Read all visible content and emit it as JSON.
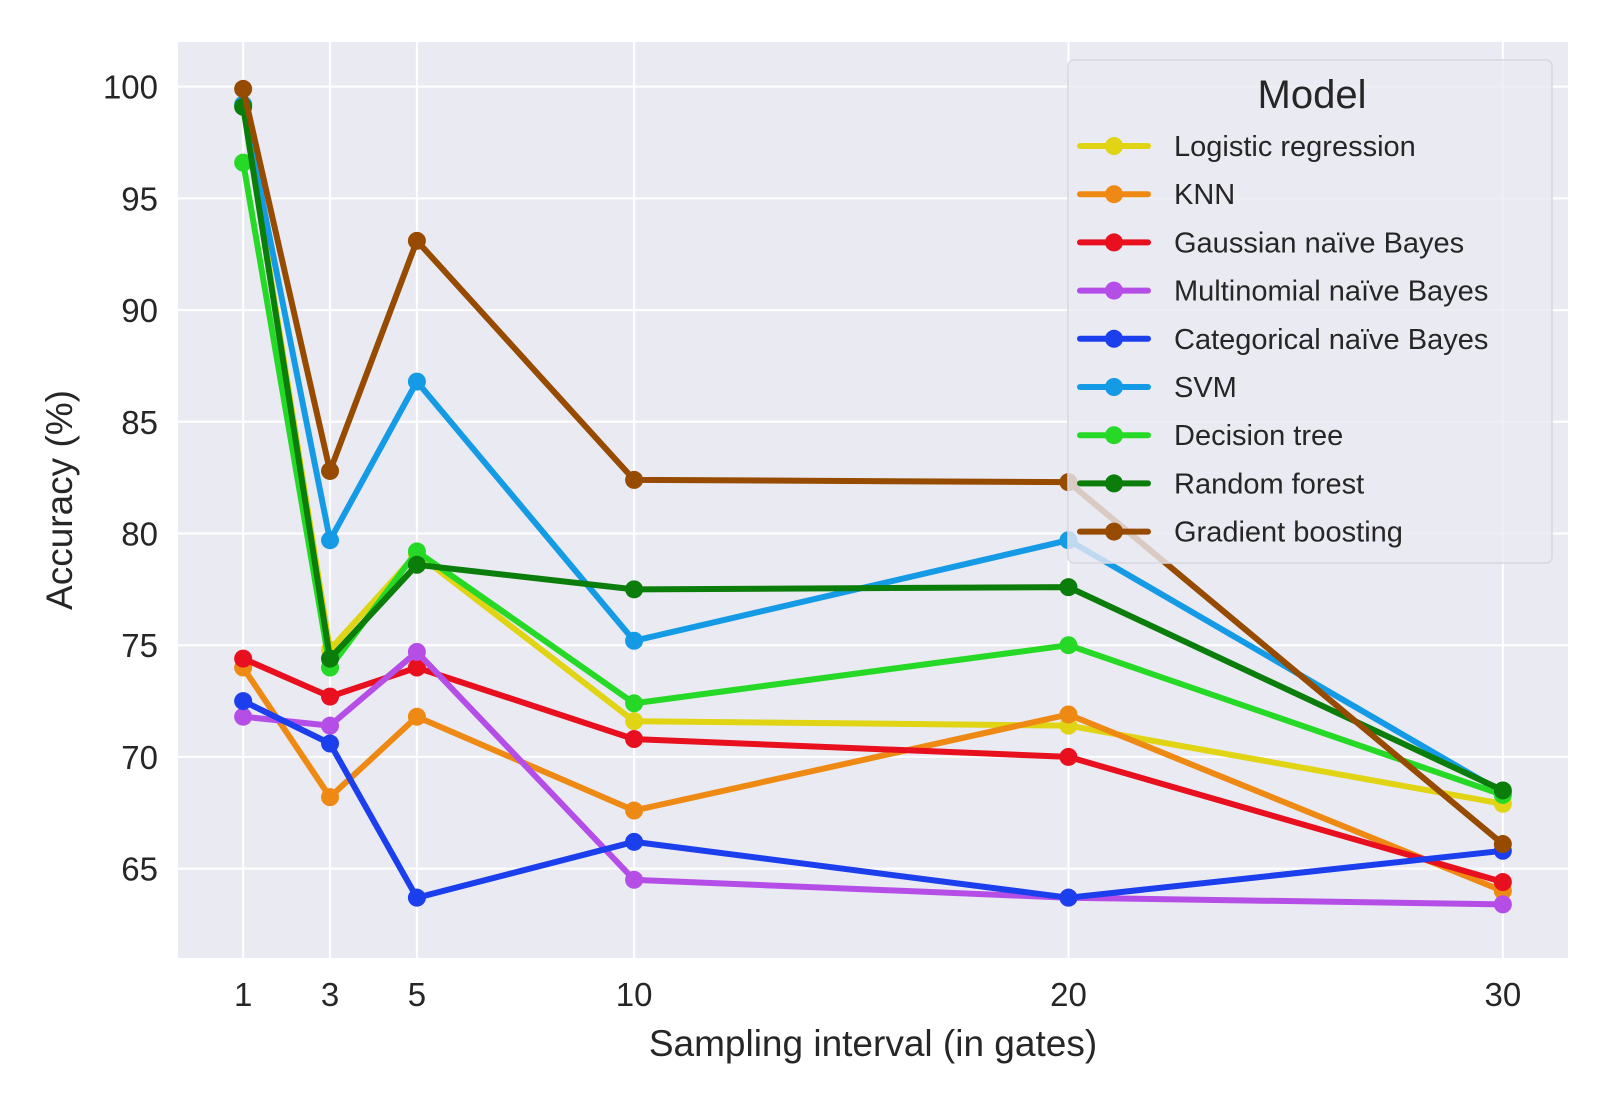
{
  "chart_data": {
    "type": "line",
    "title": "",
    "xlabel": "Sampling interval (in gates)",
    "ylabel": "Accuracy (%)",
    "x": [
      1,
      3,
      5,
      10,
      20,
      30
    ],
    "x_ticks": [
      1,
      3,
      5,
      10,
      20,
      30
    ],
    "y_ticks": [
      65,
      70,
      75,
      80,
      85,
      90,
      95,
      100
    ],
    "xlim": [
      -0.5,
      31.5
    ],
    "ylim": [
      61.0,
      102.0
    ],
    "grid": true,
    "background": "#eaeaf2",
    "legend": {
      "title": "Model",
      "placement": "top-right"
    },
    "series": [
      {
        "name": "Logistic regression",
        "color": "#e0d414",
        "values": [
          99.2,
          74.8,
          79.1,
          71.6,
          71.4,
          67.9
        ]
      },
      {
        "name": "KNN",
        "color": "#ee8a14",
        "values": [
          74.0,
          68.2,
          71.8,
          67.6,
          71.9,
          64.0
        ]
      },
      {
        "name": "Gaussian naïve Bayes",
        "color": "#e8101e",
        "values": [
          74.4,
          72.7,
          74.0,
          70.8,
          70.0,
          64.4
        ]
      },
      {
        "name": "Multinomial naïve Bayes",
        "color": "#b44ee6",
        "values": [
          71.8,
          71.4,
          74.7,
          64.5,
          63.7,
          63.4
        ]
      },
      {
        "name": "Categorical naïve Bayes",
        "color": "#1c3fee",
        "values": [
          72.5,
          70.6,
          63.7,
          66.2,
          63.7,
          65.8
        ]
      },
      {
        "name": "SVM",
        "color": "#159be6",
        "values": [
          99.2,
          79.7,
          86.8,
          75.2,
          79.7,
          68.4
        ]
      },
      {
        "name": "Decision tree",
        "color": "#27d927",
        "values": [
          96.6,
          74.0,
          79.2,
          72.4,
          75.0,
          68.3
        ]
      },
      {
        "name": "Random forest",
        "color": "#0a7d0a",
        "values": [
          99.1,
          74.4,
          78.6,
          77.5,
          77.6,
          68.5
        ]
      },
      {
        "name": "Gradient boosting",
        "color": "#964b00",
        "values": [
          99.9,
          82.8,
          93.1,
          82.4,
          82.3,
          66.1
        ]
      }
    ]
  }
}
